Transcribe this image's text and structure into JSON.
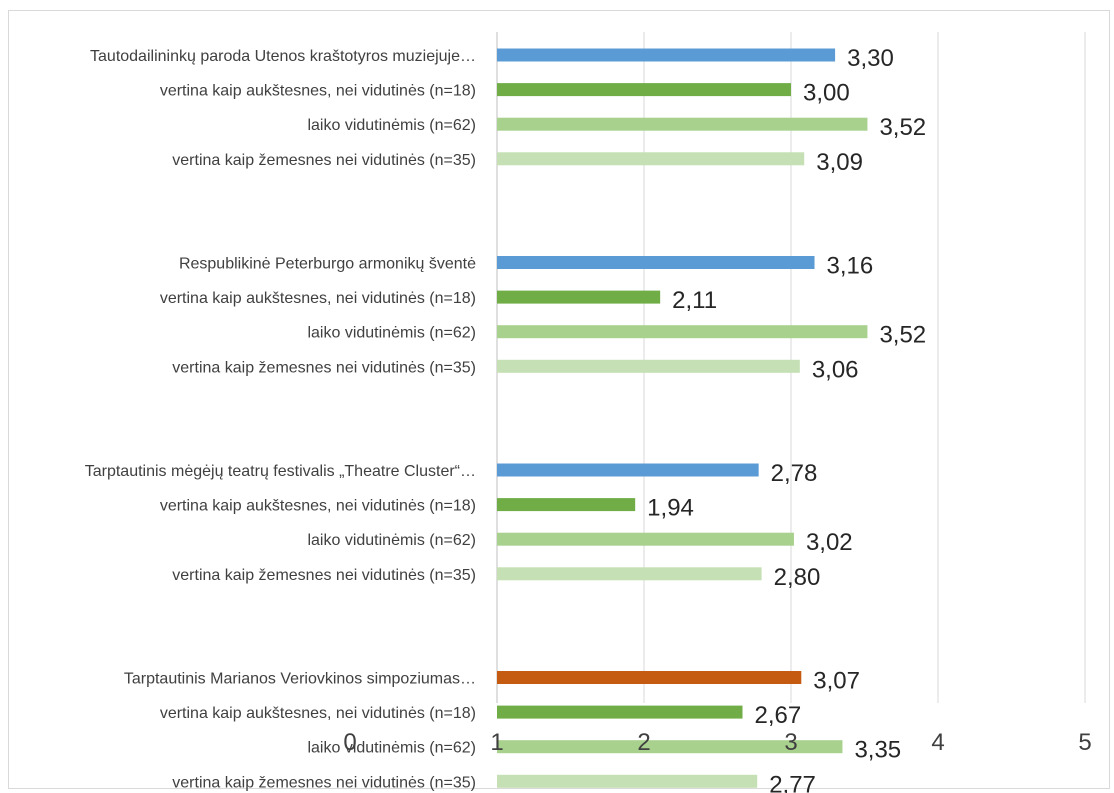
{
  "chart_data": {
    "type": "bar",
    "orientation": "horizontal",
    "title": "",
    "xlabel": "",
    "ylabel": "",
    "xlim": [
      0,
      5
    ],
    "x_ticks": [
      "0",
      "1",
      "2",
      "3",
      "4",
      "5"
    ],
    "grid": true,
    "legend": "none",
    "colors": {
      "total": "#5b9bd5",
      "total_highlight": "#c55a11",
      "higher": "#70ad47",
      "average": "#a9d18e",
      "lower": "#c5e0b4",
      "grid": "#d9d9d9",
      "axis": "#bfbfbf"
    },
    "groups": [
      {
        "bars": [
          {
            "label": "Tautodailininkų paroda Utenos kraštotyros muziejuje…",
            "value": 3.3,
            "display": "3,30",
            "kind": "total"
          },
          {
            "label": "vertina kaip aukštesnes, nei vidutinės (n=18)",
            "value": 3.0,
            "display": "3,00",
            "kind": "higher"
          },
          {
            "label": "laiko vidutinėmis (n=62)",
            "value": 3.52,
            "display": "3,52",
            "kind": "average"
          },
          {
            "label": "vertina kaip žemesnes nei vidutinės (n=35)",
            "value": 3.09,
            "display": "3,09",
            "kind": "lower"
          }
        ]
      },
      {
        "bars": [
          {
            "label": "Respublikinė Peterburgo armonikų šventė",
            "value": 3.16,
            "display": "3,16",
            "kind": "total"
          },
          {
            "label": "vertina kaip aukštesnes, nei vidutinės (n=18)",
            "value": 2.11,
            "display": "2,11",
            "kind": "higher"
          },
          {
            "label": "laiko vidutinėmis (n=62)",
            "value": 3.52,
            "display": "3,52",
            "kind": "average"
          },
          {
            "label": "vertina kaip žemesnes nei vidutinės (n=35)",
            "value": 3.06,
            "display": "3,06",
            "kind": "lower"
          }
        ]
      },
      {
        "bars": [
          {
            "label": "Tarptautinis mėgėjų teatrų festivalis „Theatre Cluster“…",
            "value": 2.78,
            "display": "2,78",
            "kind": "total"
          },
          {
            "label": "vertina kaip aukštesnes, nei vidutinės (n=18)",
            "value": 1.94,
            "display": "1,94",
            "kind": "higher"
          },
          {
            "label": "laiko vidutinėmis (n=62)",
            "value": 3.02,
            "display": "3,02",
            "kind": "average"
          },
          {
            "label": "vertina kaip žemesnes nei vidutinės (n=35)",
            "value": 2.8,
            "display": "2,80",
            "kind": "lower"
          }
        ]
      },
      {
        "bars": [
          {
            "label": "Tarptautinis Marianos Veriovkinos simpoziumas…",
            "value": 3.07,
            "display": "3,07",
            "kind": "total_highlight"
          },
          {
            "label": "vertina kaip aukštesnes, nei vidutinės (n=18)",
            "value": 2.67,
            "display": "2,67",
            "kind": "higher"
          },
          {
            "label": "laiko vidutinėmis (n=62)",
            "value": 3.35,
            "display": "3,35",
            "kind": "average"
          },
          {
            "label": "vertina kaip žemesnes nei vidutinės (n=35)",
            "value": 2.77,
            "display": "2,77",
            "kind": "lower"
          }
        ]
      }
    ]
  }
}
